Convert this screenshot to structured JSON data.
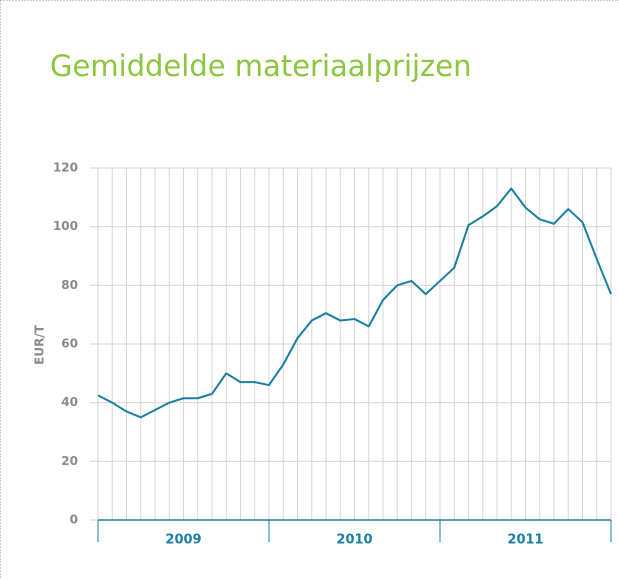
{
  "chart_data": {
    "type": "line",
    "title": "Gemiddelde materiaalprijzen",
    "y_label": "EUR/T",
    "categories": [
      null,
      null,
      null,
      null,
      null,
      null,
      null,
      null,
      null,
      null,
      null,
      null,
      null,
      null,
      null,
      null,
      null,
      null,
      null,
      null,
      null,
      null,
      null,
      null,
      null,
      null,
      null,
      null,
      null,
      null,
      null,
      null,
      null,
      null,
      null,
      null,
      null
    ],
    "values": [
      42.5,
      40,
      37,
      35,
      37.5,
      40,
      41.5,
      41.5,
      43,
      50,
      47,
      47,
      46,
      53,
      62,
      68,
      70.5,
      68,
      68.5,
      66,
      75,
      80,
      81.5,
      77,
      81.5,
      86,
      100.5,
      103.5,
      107,
      113,
      106.5,
      102.5,
      101,
      106,
      101.5,
      89,
      77
    ],
    "color": "#1a7fa0",
    "year_labels": [
      "2009",
      "2010",
      "2011"
    ],
    "ylim": [
      0,
      120
    ],
    "yticks": [
      0,
      20,
      40,
      60,
      80,
      100,
      120
    ],
    "grid": true
  }
}
